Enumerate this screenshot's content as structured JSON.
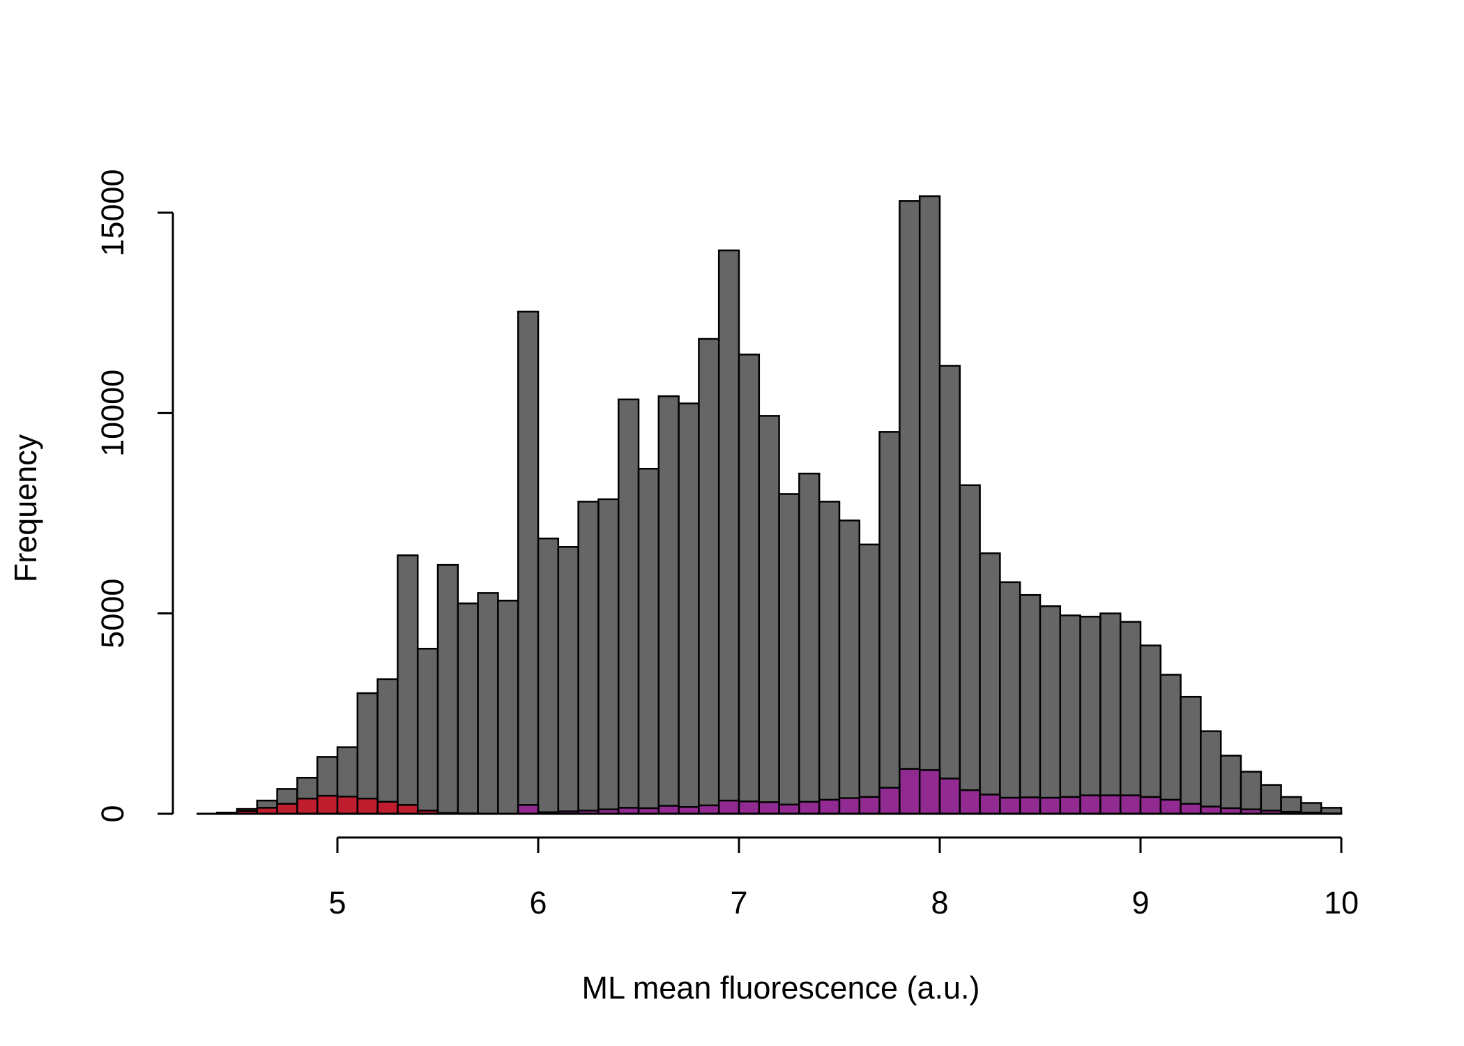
{
  "chart_data": {
    "type": "bar",
    "title": "",
    "xlabel": "ML mean fluorescence (a.u.)",
    "ylabel": "Frequency",
    "xlim": [
      4.2,
      10.0
    ],
    "ylim": [
      0,
      15500
    ],
    "x_ticks": [
      "5",
      "6",
      "7",
      "8",
      "9",
      "10"
    ],
    "y_ticks": [
      "0",
      "5000",
      "10000",
      "15000"
    ],
    "bin_width": 0.1,
    "bin_starts": [
      4.4,
      4.5,
      4.6,
      4.7,
      4.8,
      4.9,
      5.0,
      5.1,
      5.2,
      5.3,
      5.4,
      5.5,
      5.6,
      5.7,
      5.8,
      5.9,
      6.0,
      6.1,
      6.2,
      6.3,
      6.4,
      6.5,
      6.6,
      6.7,
      6.8,
      6.9,
      7.0,
      7.1,
      7.2,
      7.3,
      7.4,
      7.5,
      7.6,
      7.7,
      7.8,
      7.9,
      8.0,
      8.1,
      8.2,
      8.3,
      8.4,
      8.5,
      8.6,
      8.7,
      8.8,
      8.9,
      9.0,
      9.1,
      9.2,
      9.3,
      9.4,
      9.5,
      9.6,
      9.7,
      9.8,
      9.9
    ],
    "series": [
      {
        "color": "#666666",
        "values": [
          30,
          120,
          330,
          620,
          900,
          1420,
          1660,
          3010,
          3360,
          6450,
          4120,
          6210,
          5250,
          5510,
          5320,
          12530,
          6870,
          6660,
          7790,
          7850,
          10340,
          8610,
          10420,
          10240,
          11850,
          14060,
          11460,
          9930,
          7980,
          8490,
          7790,
          7320,
          6720,
          9530,
          15290,
          15410,
          11180,
          8200,
          6500,
          5780,
          5460,
          5180,
          4950,
          4920,
          5000,
          4790,
          4200,
          3470,
          2920,
          2060,
          1450,
          1050,
          720,
          420,
          270,
          150
        ]
      },
      {
        "color": "#C01E2F",
        "values": [
          10,
          70,
          150,
          250,
          380,
          450,
          430,
          380,
          300,
          220,
          80,
          20,
          10,
          5,
          0,
          0,
          0,
          0,
          0,
          0,
          0,
          0,
          0,
          0,
          0,
          0,
          0,
          0,
          0,
          0,
          0,
          0,
          0,
          0,
          0,
          0,
          0,
          0,
          0,
          0,
          0,
          0,
          0,
          0,
          0,
          0,
          0,
          0,
          0,
          0,
          0,
          0,
          0,
          0,
          0,
          0
        ]
      },
      {
        "color": "#922B91",
        "values": [
          0,
          0,
          0,
          0,
          0,
          0,
          0,
          0,
          0,
          0,
          0,
          0,
          0,
          0,
          0,
          220,
          40,
          60,
          80,
          110,
          150,
          140,
          200,
          170,
          210,
          330,
          310,
          290,
          230,
          300,
          350,
          390,
          420,
          650,
          1120,
          1090,
          880,
          590,
          480,
          400,
          410,
          400,
          420,
          460,
          460,
          460,
          420,
          350,
          250,
          180,
          140,
          110,
          80,
          50,
          30,
          10
        ]
      }
    ]
  }
}
